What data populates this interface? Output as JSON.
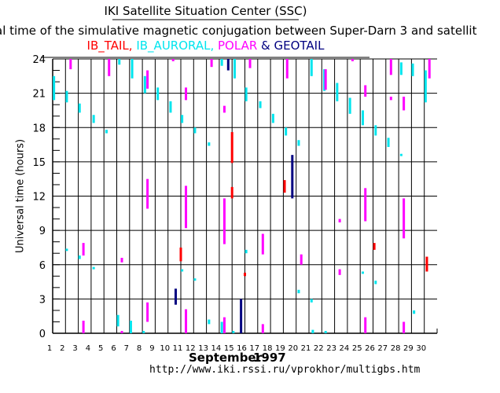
{
  "header": {
    "title": "IKI Satellite Situation Center (SSC)",
    "subtitle": "al time of the simulative magnetic conjugation between Super-Darn 3 and satellit",
    "url": "http://www.iki.rssi.ru/vprokhor/multigbs.htm"
  },
  "chart_data": {
    "type": "scatter",
    "title": "IKI Satellite Situation Center (SSC)",
    "xlabel_month": "September",
    "xlabel_year": "1997",
    "ylabel": "Universal time (hours)",
    "xlim": [
      1,
      31
    ],
    "ylim": [
      0,
      24
    ],
    "x_ticks": [
      "1",
      "2",
      "3",
      "4",
      "5",
      "6",
      "7",
      "8",
      "9",
      "10",
      "11",
      "12",
      "13",
      "14",
      "15",
      "16",
      "17",
      "18",
      "19",
      "20",
      "21",
      "22",
      "23",
      "24",
      "25",
      "26",
      "27",
      "28",
      "29",
      "30"
    ],
    "y_ticks": [
      "0",
      "3",
      "6",
      "9",
      "12",
      "15",
      "18",
      "21",
      "24"
    ],
    "grid": true,
    "legend_position": "top",
    "series": [
      {
        "name": "IB_TAIL",
        "color": "#ff0000",
        "separator": ", ",
        "segments": [
          [
            15.0,
            14.9,
            17.6
          ],
          [
            15.0,
            11.8,
            12.8
          ],
          [
            11.0,
            6.3,
            7.5
          ],
          [
            19.1,
            12.3,
            13.4
          ],
          [
            16.0,
            5.0,
            5.3
          ],
          [
            26.1,
            7.3,
            7.9
          ],
          [
            30.2,
            5.4,
            6.7
          ]
        ]
      },
      {
        "name": "IB_AURORAL",
        "color": "#00e5ee",
        "separator": ", ",
        "segments": [
          [
            1.1,
            20.4,
            22.5
          ],
          [
            2.1,
            20.2,
            21.2
          ],
          [
            3.1,
            19.3,
            20.1
          ],
          [
            4.2,
            18.4,
            19.1
          ],
          [
            5.2,
            17.5,
            17.8
          ],
          [
            6.2,
            23.5,
            24
          ],
          [
            7.2,
            22.3,
            24
          ],
          [
            8.2,
            21,
            22.5
          ],
          [
            9.2,
            20.4,
            21.5
          ],
          [
            10.2,
            19.3,
            20.3
          ],
          [
            11.1,
            18.4,
            19.1
          ],
          [
            12.1,
            17.5,
            18
          ],
          [
            13.2,
            16.4,
            16.7
          ],
          [
            14.2,
            23.4,
            24
          ],
          [
            15.2,
            22.3,
            24
          ],
          [
            16.1,
            20.3,
            21.5
          ],
          [
            17.2,
            19.7,
            20.3
          ],
          [
            18.2,
            18.4,
            19.2
          ],
          [
            19.2,
            17.3,
            18
          ],
          [
            20.2,
            16.4,
            16.9
          ],
          [
            21.2,
            22.5,
            24
          ],
          [
            22.2,
            21.2,
            23.1
          ],
          [
            23.2,
            20.3,
            21.9
          ],
          [
            24.2,
            19.2,
            20.6
          ],
          [
            25.2,
            18.2,
            19.5
          ],
          [
            26.2,
            17.3,
            18.2
          ],
          [
            27.2,
            16.3,
            17.1
          ],
          [
            28.2,
            22.6,
            23.7
          ],
          [
            28.2,
            15.5,
            15.7
          ],
          [
            29.1,
            22.5,
            23.6
          ],
          [
            30.1,
            20.2,
            23
          ],
          [
            2.1,
            7.2,
            7.4
          ],
          [
            3.1,
            6.5,
            6.8
          ],
          [
            4.2,
            5.6,
            5.8
          ],
          [
            6.1,
            0.6,
            1.6
          ],
          [
            7.1,
            0,
            1.1
          ],
          [
            8.1,
            0,
            0.2
          ],
          [
            11.1,
            5.4,
            5.6
          ],
          [
            12.1,
            4.6,
            4.8
          ],
          [
            13.2,
            0.8,
            1.2
          ],
          [
            14.2,
            0,
            1
          ],
          [
            15.1,
            0,
            0.2
          ],
          [
            16.1,
            7,
            7.3
          ],
          [
            20.2,
            3.5,
            3.8
          ],
          [
            21.2,
            2.7,
            3
          ],
          [
            21.3,
            0,
            0.3
          ],
          [
            22.3,
            0,
            0.2
          ],
          [
            25.2,
            5.2,
            5.4
          ],
          [
            26.2,
            4.3,
            4.6
          ],
          [
            29.2,
            1.7,
            2
          ]
        ]
      },
      {
        "name": "POLAR",
        "color": "#ff00ff",
        "separator": " & ",
        "segments": [
          [
            2.4,
            23.1,
            24
          ],
          [
            5.4,
            22.5,
            24
          ],
          [
            8.4,
            21.4,
            23
          ],
          [
            10.4,
            23.8,
            24
          ],
          [
            11.4,
            20.4,
            21.5
          ],
          [
            13.4,
            23.3,
            24
          ],
          [
            14.4,
            19.3,
            19.9
          ],
          [
            16.4,
            23.2,
            24
          ],
          [
            19.3,
            22.3,
            24
          ],
          [
            22.3,
            21.3,
            23.1
          ],
          [
            24.4,
            23.8,
            24
          ],
          [
            25.4,
            20.7,
            21.7
          ],
          [
            27.4,
            22.6,
            24
          ],
          [
            27.4,
            20.4,
            20.7
          ],
          [
            28.4,
            19.5,
            20.7
          ],
          [
            30.4,
            22.3,
            24
          ],
          [
            8.4,
            10.9,
            13.5
          ],
          [
            11.4,
            9.2,
            12.9
          ],
          [
            14.4,
            7.8,
            11.8
          ],
          [
            17.4,
            6.9,
            8.7
          ],
          [
            25.4,
            9.8,
            12.7
          ],
          [
            28.4,
            8.3,
            11.8
          ],
          [
            23.4,
            9.7,
            10
          ],
          [
            3.4,
            6.8,
            7.9
          ],
          [
            6.4,
            6.2,
            6.6
          ],
          [
            20.4,
            6,
            6.9
          ],
          [
            23.4,
            5.1,
            5.6
          ],
          [
            3.4,
            0,
            1.1
          ],
          [
            8.4,
            1,
            2.7
          ],
          [
            6.4,
            0,
            0.2
          ],
          [
            11.4,
            0,
            2.1
          ],
          [
            14.4,
            0,
            1.4
          ],
          [
            17.4,
            0,
            0.8
          ],
          [
            25.4,
            0,
            1.4
          ],
          [
            28.4,
            0,
            1
          ]
        ]
      },
      {
        "name": "GEOTAIL",
        "color": "#000080",
        "separator": "",
        "segments": [
          [
            14.7,
            23,
            24
          ],
          [
            19.7,
            11.8,
            15.6
          ],
          [
            10.6,
            2.5,
            3.9
          ],
          [
            15.7,
            0,
            3
          ]
        ]
      }
    ]
  }
}
